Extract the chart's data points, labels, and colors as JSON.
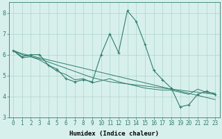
{
  "xlabel": "Humidex (Indice chaleur)",
  "x": [
    0,
    1,
    2,
    3,
    4,
    5,
    6,
    7,
    8,
    9,
    10,
    11,
    12,
    13,
    14,
    15,
    16,
    17,
    18,
    19,
    20,
    21,
    22,
    23
  ],
  "line1": [
    6.2,
    5.9,
    6.0,
    6.0,
    5.5,
    5.3,
    4.85,
    4.7,
    4.8,
    4.7,
    6.0,
    7.0,
    6.1,
    8.1,
    7.6,
    6.5,
    5.25,
    4.8,
    4.4,
    3.5,
    3.6,
    4.1,
    4.25,
    4.1
  ],
  "line2": [
    6.2,
    6.05,
    5.95,
    5.85,
    5.75,
    5.65,
    5.55,
    5.45,
    5.35,
    5.25,
    5.15,
    5.05,
    4.95,
    4.85,
    4.75,
    4.65,
    4.55,
    4.45,
    4.35,
    4.25,
    4.15,
    4.05,
    3.95,
    3.85
  ],
  "line3": [
    6.2,
    6.0,
    5.9,
    5.8,
    5.65,
    5.5,
    5.35,
    5.2,
    5.05,
    4.9,
    4.8,
    4.7,
    4.65,
    4.6,
    4.55,
    4.5,
    4.45,
    4.4,
    4.35,
    4.3,
    4.25,
    4.2,
    4.15,
    4.1
  ],
  "line4": [
    6.2,
    5.85,
    5.9,
    5.75,
    5.5,
    5.2,
    5.05,
    4.8,
    4.85,
    4.65,
    4.75,
    4.85,
    4.7,
    4.6,
    4.5,
    4.4,
    4.35,
    4.3,
    4.3,
    4.2,
    4.1,
    4.35,
    4.2,
    4.15
  ],
  "line_color": "#2e7d6e",
  "bg_color": "#d8f0ec",
  "grid_color": "#aed4cc",
  "ylim": [
    3.0,
    8.5
  ],
  "yticks": [
    3,
    4,
    5,
    6,
    7,
    8
  ],
  "xticks": [
    0,
    1,
    2,
    3,
    4,
    5,
    6,
    7,
    8,
    9,
    10,
    11,
    12,
    13,
    14,
    15,
    16,
    17,
    18,
    19,
    20,
    21,
    22,
    23
  ],
  "tick_fontsize": 5.5,
  "xlabel_fontsize": 6.5
}
